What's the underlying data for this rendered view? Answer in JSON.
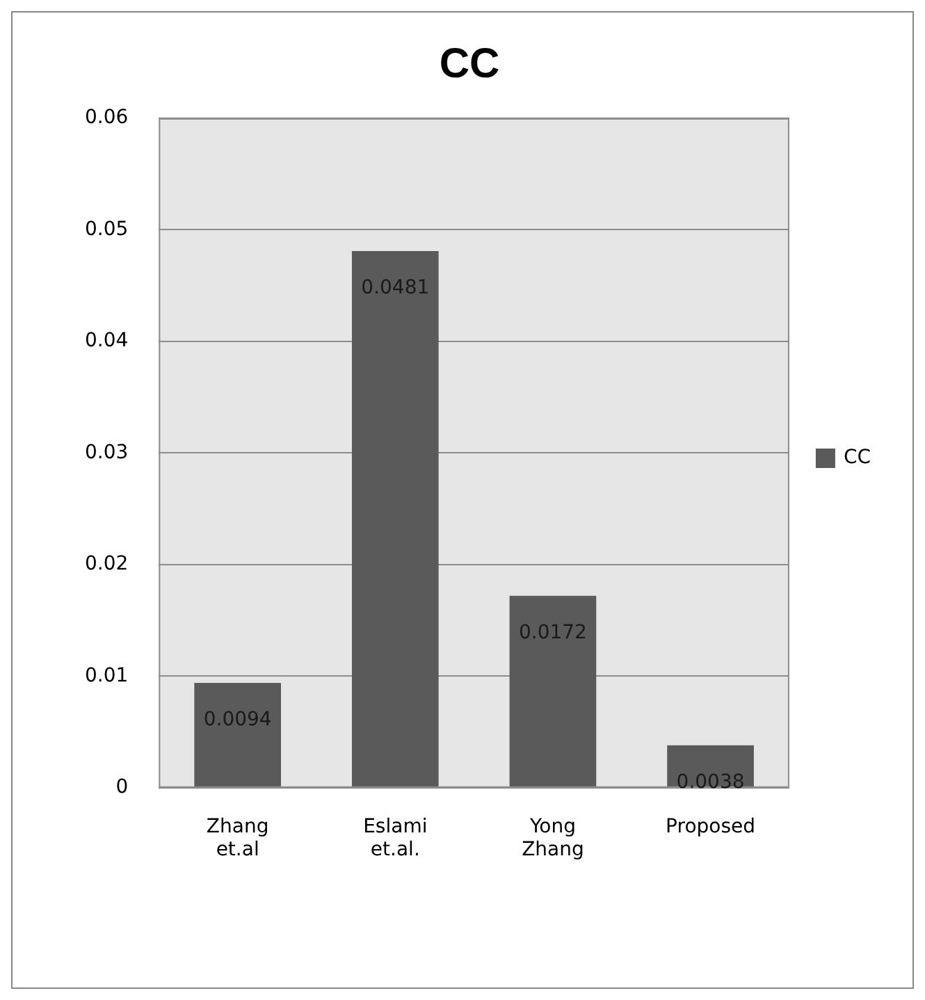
{
  "chart_data": {
    "type": "bar",
    "title": "CC",
    "categories": [
      "Zhang et.al",
      "Eslami et.al.",
      "Yong Zhang",
      "Proposed"
    ],
    "series": [
      {
        "name": "CC",
        "color": "#5a5a5a",
        "values": [
          0.0094,
          0.0481,
          0.0172,
          0.0038
        ]
      }
    ],
    "ylim": [
      0,
      0.06
    ],
    "yticks": [
      0,
      0.01,
      0.02,
      0.03,
      0.04,
      0.05,
      0.06
    ],
    "grid": "y",
    "legend": "right",
    "data_labels": true
  }
}
